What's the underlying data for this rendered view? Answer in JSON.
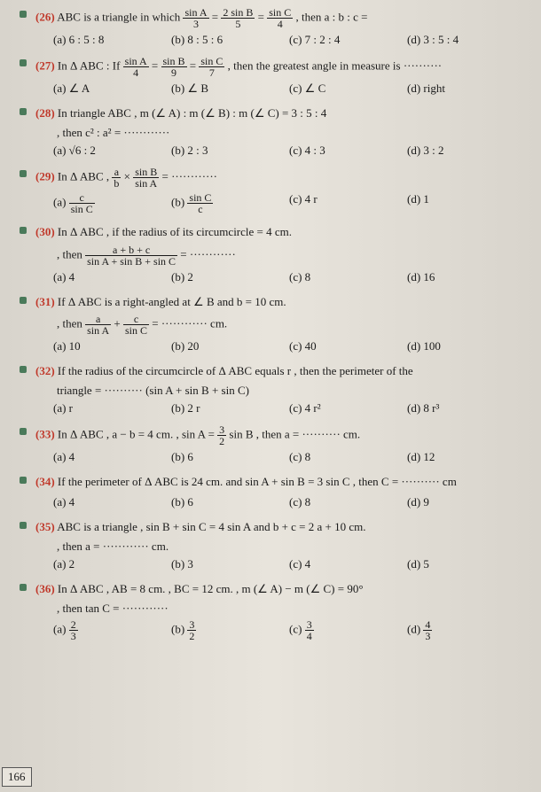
{
  "q26": {
    "num": "(26)",
    "stem_a": "ABC is a triangle in which",
    "f1n": "sin A",
    "f1d": "3",
    "eq1": "=",
    "f2n": "2 sin B",
    "f2d": "5",
    "eq2": "=",
    "f3n": "sin C",
    "f3d": "4",
    "tail": ", then a : b : c =",
    "a": "(a) 6 : 5 : 8",
    "b": "(b) 8 : 5 : 6",
    "c": "(c) 7 : 2 : 4",
    "d": "(d) 3 : 5 : 4"
  },
  "q27": {
    "num": "(27)",
    "stem_a": "In Δ ABC : If",
    "f1n": "sin A",
    "f1d": "4",
    "eq1": "=",
    "f2n": "sin B",
    "f2d": "9",
    "eq2": "=",
    "f3n": "sin C",
    "f3d": "7",
    "tail": ", then the greatest angle in measure is ··········",
    "a": "(a) ∠ A",
    "b": "(b) ∠ B",
    "c": "(c) ∠ C",
    "d": "(d) right"
  },
  "q28": {
    "num": "(28)",
    "stem": "In triangle ABC , m (∠ A) : m (∠ B) : m (∠ C) = 3 : 5 : 4",
    "sub": ", then c² : a² = ············",
    "a": "(a) √6 : 2",
    "b": "(b) 2 : 3",
    "c": "(c) 4 : 3",
    "d": "(d) 3 : 2"
  },
  "q29": {
    "num": "(29)",
    "stem_a": "In Δ ABC ,",
    "f1n": "a",
    "f1d": "b",
    "mult": "×",
    "f2n": "sin B",
    "f2d": "sin A",
    "eq": "= ············",
    "a_pre": "(a)",
    "a_n": "c",
    "a_d": "sin C",
    "b_pre": "(b)",
    "b_n": "sin C",
    "b_d": "c",
    "c": "(c) 4 r",
    "d": "(d) 1"
  },
  "q30": {
    "num": "(30)",
    "stem": "In Δ ABC , if the radius of its circumcircle = 4 cm.",
    "sub_a": ", then",
    "fn": "a + b + c",
    "fd": "sin A + sin B + sin C",
    "eq": "= ············",
    "a": "(a) 4",
    "b": "(b) 2",
    "c": "(c) 8",
    "d": "(d) 16"
  },
  "q31": {
    "num": "(31)",
    "stem": "If Δ ABC is a right-angled at ∠ B and b = 10 cm.",
    "sub_a": ", then",
    "f1n": "a",
    "f1d": "sin A",
    "plus": "+",
    "f2n": "c",
    "f2d": "sin C",
    "eq": "= ············ cm.",
    "a": "(a) 10",
    "b": "(b) 20",
    "c": "(c) 40",
    "d": "(d) 100"
  },
  "q32": {
    "num": "(32)",
    "stem": "If the radius of the circumcircle of Δ ABC equals r , then the perimeter of the",
    "sub": "triangle = ·········· (sin A + sin B + sin C)",
    "a": "(a) r",
    "b": "(b) 2 r",
    "c": "(c) 4 r²",
    "d": "(d) 8 r³"
  },
  "q33": {
    "num": "(33)",
    "stem_a": "In Δ ABC , a − b = 4 cm. , sin A =",
    "fn": "3",
    "fd": "2",
    "tail": " sin B , then a = ·········· cm.",
    "a": "(a) 4",
    "b": "(b) 6",
    "c": "(c) 8",
    "d": "(d) 12"
  },
  "q34": {
    "num": "(34)",
    "stem": "If the perimeter of Δ ABC is 24 cm. and sin A + sin B = 3 sin C , then C = ·········· cm",
    "a": "(a) 4",
    "b": "(b) 6",
    "c": "(c) 8",
    "d": "(d) 9"
  },
  "q35": {
    "num": "(35)",
    "stem": "ABC is a triangle , sin B + sin C = 4 sin A and b + c = 2 a + 10 cm.",
    "sub": ", then a = ············ cm.",
    "a": "(a) 2",
    "b": "(b) 3",
    "c": "(c) 4",
    "d": "(d) 5"
  },
  "q36": {
    "num": "(36)",
    "stem": "In Δ ABC , AB = 8 cm.   ,   BC = 12 cm.   ,   m (∠ A) − m (∠ C) = 90°",
    "sub": ", then tan C = ············",
    "a_pre": "(a)",
    "a_n": "2",
    "a_d": "3",
    "b_pre": "(b)",
    "b_n": "3",
    "b_d": "2",
    "c_pre": "(c)",
    "c_n": "3",
    "c_d": "4",
    "d_pre": "(d)",
    "d_n": "4",
    "d_d": "3"
  },
  "pagenum": "166"
}
